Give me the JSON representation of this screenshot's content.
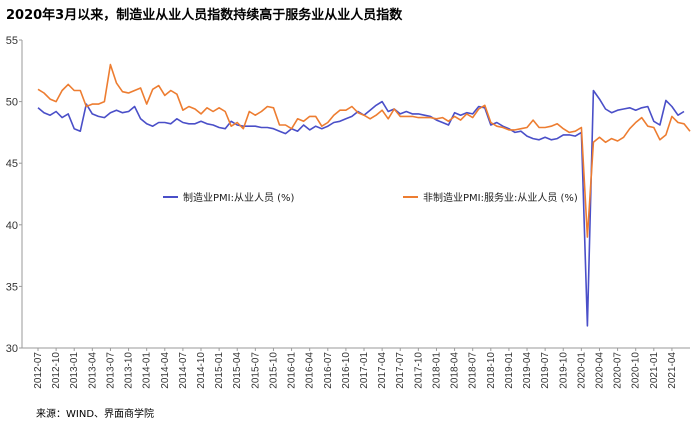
{
  "title": "2020年3月以来，制造业从业人员指数持续高于服务业从业人员指数",
  "source": "来源：WIND、界面商学院",
  "colors": {
    "manufacturing": "#4a4fc8",
    "nonmanufacturing": "#ed7d31",
    "axis": "#9a9a9a"
  },
  "chart_data": {
    "type": "line",
    "title": "2020年3月以来，制造业从业人员指数持续高于服务业从业人员指数",
    "ylim": [
      30,
      55
    ],
    "yticks": [
      "30",
      "35",
      "40",
      "45",
      "50",
      "55"
    ],
    "start": "2012-07",
    "xtick_labels": [
      "2012-07",
      "2012-10",
      "2013-01",
      "2013-04",
      "2013-07",
      "2013-10",
      "2014-01",
      "2014-04",
      "2014-07",
      "2014-10",
      "2015-01",
      "2015-04",
      "2015-07",
      "2015-10",
      "2016-01",
      "2016-04",
      "2016-07",
      "2016-10",
      "2017-01",
      "2017-04",
      "2017-07",
      "2017-10",
      "2018-01",
      "2018-04",
      "2018-07",
      "2018-10",
      "2019-01",
      "2019-04",
      "2019-07",
      "2019-10",
      "2020-01",
      "2020-04",
      "2020-07",
      "2020-10",
      "2021-01",
      "2021-04"
    ],
    "legend_position": "middle",
    "grid": false,
    "series": [
      {
        "name": "制造业PMI:从业人员 (%)",
        "values": [
          49.5,
          49.1,
          48.9,
          49.2,
          48.7,
          49.0,
          47.8,
          47.6,
          49.8,
          49.0,
          48.8,
          48.7,
          49.1,
          49.3,
          49.1,
          49.2,
          49.6,
          48.6,
          48.2,
          48.0,
          48.3,
          48.3,
          48.2,
          48.6,
          48.3,
          48.2,
          48.2,
          48.4,
          48.2,
          48.1,
          47.9,
          47.8,
          48.4,
          48.1,
          48.0,
          48.0,
          48.0,
          47.9,
          47.9,
          47.8,
          47.6,
          47.4,
          47.8,
          47.6,
          48.1,
          47.7,
          48.0,
          47.8,
          48.0,
          48.3,
          48.4,
          48.6,
          48.8,
          49.2,
          48.9,
          49.3,
          49.7,
          50.0,
          49.2,
          49.4,
          49.0,
          49.2,
          49.0,
          49.0,
          48.9,
          48.8,
          48.5,
          48.3,
          48.1,
          49.1,
          48.9,
          49.1,
          49.0,
          49.6,
          49.5,
          48.1,
          48.3,
          48.0,
          47.8,
          47.5,
          47.6,
          47.2,
          47.0,
          46.9,
          47.1,
          46.9,
          47.0,
          47.3,
          47.3,
          47.2,
          47.5,
          31.8,
          50.9,
          50.2,
          49.4,
          49.1,
          49.3,
          49.4,
          49.5,
          49.3,
          49.5,
          49.6,
          48.4,
          48.1,
          50.1,
          49.6,
          48.9,
          49.2
        ]
      },
      {
        "name": "非制造业PMI:服务业:从业人员 (%)",
        "values": [
          51.0,
          50.7,
          50.2,
          50.0,
          50.9,
          51.4,
          50.9,
          50.9,
          49.6,
          49.8,
          49.8,
          50.0,
          53.0,
          51.5,
          50.8,
          50.7,
          50.9,
          51.1,
          49.8,
          51.0,
          51.3,
          50.5,
          50.9,
          50.6,
          49.3,
          49.6,
          49.4,
          49.0,
          49.5,
          49.2,
          49.5,
          49.2,
          48.0,
          48.3,
          47.8,
          49.2,
          48.9,
          49.2,
          49.6,
          49.5,
          48.1,
          48.1,
          47.8,
          48.6,
          48.4,
          48.8,
          48.8,
          48.0,
          48.3,
          48.9,
          49.3,
          49.3,
          49.6,
          49.1,
          48.9,
          48.6,
          48.9,
          49.3,
          48.6,
          49.4,
          48.8,
          48.8,
          48.8,
          48.7,
          48.7,
          48.7,
          48.6,
          48.7,
          48.4,
          48.8,
          48.5,
          49.0,
          48.7,
          49.4,
          49.7,
          48.3,
          48.0,
          47.9,
          47.7,
          47.7,
          47.8,
          47.9,
          48.5,
          47.9,
          47.9,
          48.0,
          48.2,
          47.8,
          47.5,
          47.6,
          47.9,
          39.0,
          46.7,
          47.1,
          46.7,
          47.0,
          46.8,
          47.1,
          47.8,
          48.3,
          48.7,
          48.0,
          47.9,
          46.9,
          47.3,
          48.8,
          48.3,
          48.2,
          47.6
        ]
      }
    ]
  }
}
